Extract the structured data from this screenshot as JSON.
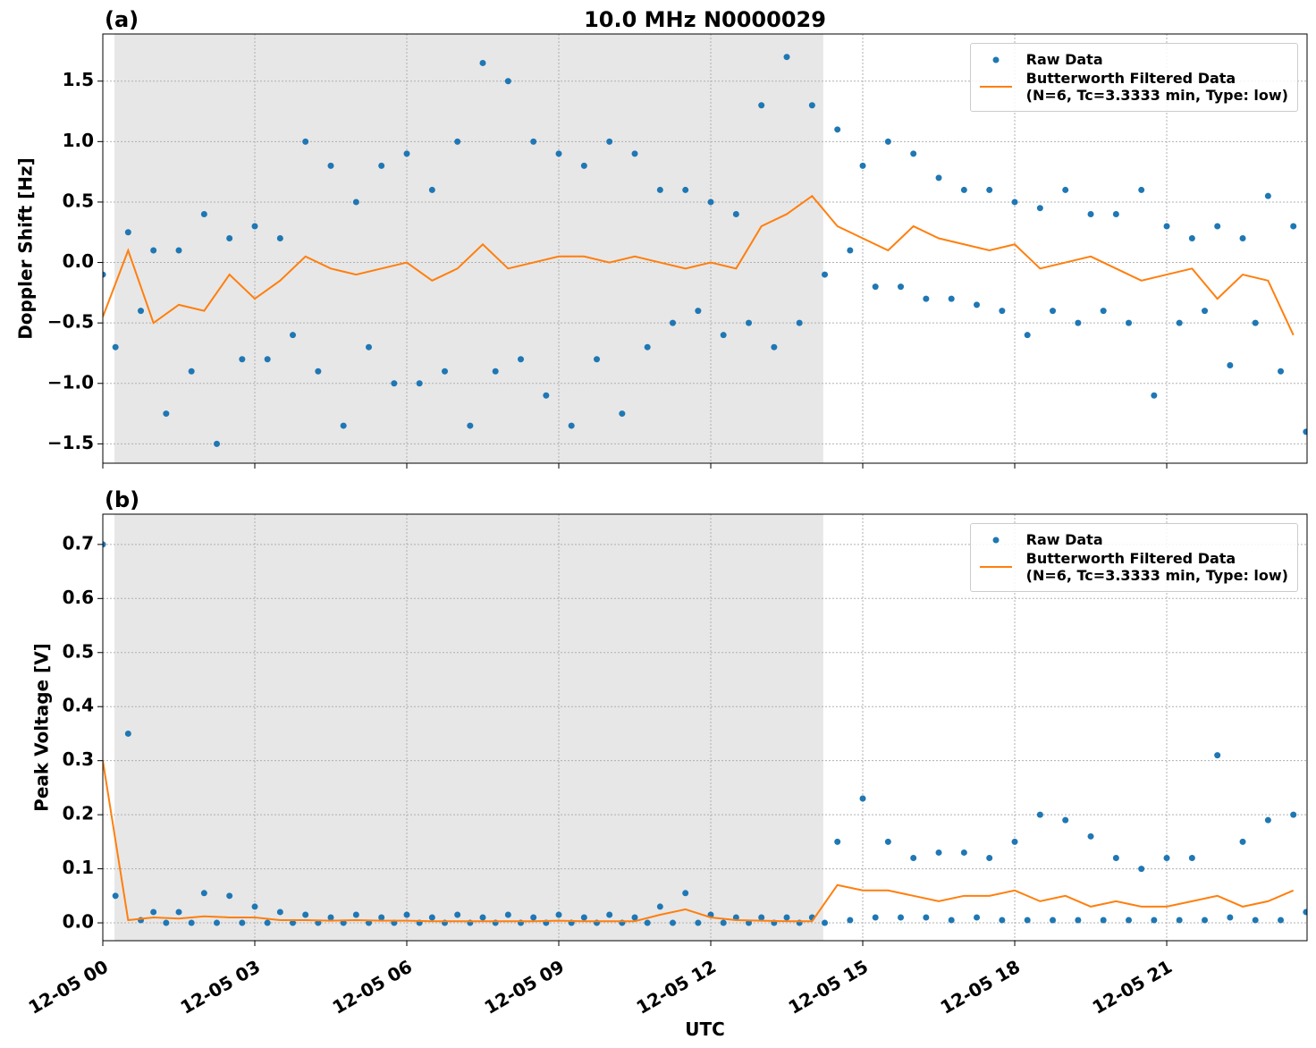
{
  "chart_data": [
    {
      "type": "line",
      "title": "10.0 MHz N0000029",
      "panel_label": "(a)",
      "ylabel": "Doppler Shift [Hz]",
      "xlim": [
        0,
        23.77
      ],
      "ylim": [
        -1.66,
        1.89
      ],
      "xticks": [
        0,
        3,
        6,
        9,
        12,
        15,
        18,
        21
      ],
      "yticks": [
        {
          "value": -1.5,
          "label": "−1.5"
        },
        {
          "value": -1.0,
          "label": "−1.0"
        },
        {
          "value": -0.5,
          "label": "−0.5"
        },
        {
          "value": 0.0,
          "label": "0.0"
        },
        0.5,
        {
          "value": 1.0,
          "label": "1.0"
        },
        1.5
      ],
      "grid": true,
      "legend": "upper right",
      "shade": [
        0.23,
        14.22
      ],
      "shade_color": "#e7e7e7",
      "series": [
        {
          "name": "Raw Data",
          "type": "scatter",
          "color": "#1f77b4",
          "x": [
            0,
            0.25,
            0.5,
            0.75,
            1,
            1.25,
            1.5,
            1.75,
            2,
            2.25,
            2.5,
            2.75,
            3,
            3.25,
            3.5,
            3.75,
            4,
            4.25,
            4.5,
            4.75,
            5,
            5.25,
            5.5,
            5.75,
            6,
            6.25,
            6.5,
            6.75,
            7,
            7.25,
            7.5,
            7.75,
            8,
            8.25,
            8.5,
            8.75,
            9,
            9.25,
            9.5,
            9.75,
            10,
            10.25,
            10.5,
            10.75,
            11,
            11.25,
            11.5,
            11.75,
            12,
            12.25,
            12.5,
            12.75,
            13,
            13.25,
            13.5,
            13.75,
            14,
            14.25,
            14.5,
            14.75,
            15,
            15.25,
            15.5,
            15.75,
            16,
            16.25,
            16.5,
            16.75,
            17,
            17.25,
            17.5,
            17.75,
            18,
            18.25,
            18.5,
            18.75,
            19,
            19.25,
            19.5,
            19.75,
            20,
            20.25,
            20.5,
            20.75,
            21,
            21.25,
            21.5,
            21.75,
            22,
            22.25,
            22.5,
            22.75,
            23,
            23.25,
            23.5,
            23.75
          ],
          "values": [
            -0.1,
            -0.7,
            0.25,
            -0.4,
            0.1,
            -1.25,
            0.1,
            -0.9,
            0.4,
            -1.5,
            0.2,
            -0.8,
            0.3,
            -0.8,
            0.2,
            -0.6,
            1.0,
            -0.9,
            0.8,
            -1.35,
            0.5,
            -0.7,
            0.8,
            -1.0,
            0.9,
            -1.0,
            0.6,
            -0.9,
            1.0,
            -1.35,
            1.65,
            -0.9,
            1.5,
            -0.8,
            1.0,
            -1.1,
            0.9,
            -1.35,
            0.8,
            -0.8,
            1.0,
            -1.25,
            0.9,
            -0.7,
            0.6,
            -0.5,
            0.6,
            -0.4,
            0.5,
            -0.6,
            0.4,
            -0.5,
            1.3,
            -0.7,
            1.7,
            -0.5,
            1.3,
            -0.1,
            1.1,
            0.1,
            0.8,
            -0.2,
            1.0,
            -0.2,
            0.9,
            -0.3,
            0.7,
            -0.3,
            0.6,
            -0.35,
            0.6,
            -0.4,
            0.5,
            -0.6,
            0.45,
            -0.4,
            0.6,
            -0.5,
            0.4,
            -0.4,
            0.4,
            -0.5,
            0.6,
            -1.1,
            0.3,
            -0.5,
            0.2,
            -0.4,
            0.3,
            -0.85,
            0.2,
            -0.5,
            0.55,
            -0.9,
            0.3,
            -1.4
          ]
        },
        {
          "name": "Butterworth Filtered Data\n(N=6, Tc=3.3333 min, Type: low)",
          "type": "line",
          "color": "#ff7f0e",
          "x": [
            0,
            0.5,
            1,
            1.5,
            2,
            2.5,
            3,
            3.5,
            4,
            4.5,
            5,
            5.5,
            6,
            6.5,
            7,
            7.5,
            8,
            8.5,
            9,
            9.5,
            10,
            10.5,
            11,
            11.5,
            12,
            12.5,
            13,
            13.5,
            14,
            14.5,
            15,
            15.5,
            16,
            16.5,
            17,
            17.5,
            18,
            18.5,
            19,
            19.5,
            20,
            20.5,
            21,
            21.5,
            22,
            22.5,
            23,
            23.5
          ],
          "values": [
            -0.45,
            0.1,
            -0.5,
            -0.35,
            -0.4,
            -0.1,
            -0.3,
            -0.15,
            0.05,
            -0.05,
            -0.1,
            -0.05,
            0.0,
            -0.15,
            -0.05,
            0.15,
            -0.05,
            0.0,
            0.05,
            0.05,
            0.0,
            0.05,
            0.0,
            -0.05,
            0.0,
            -0.05,
            0.3,
            0.4,
            0.55,
            0.3,
            0.2,
            0.1,
            0.3,
            0.2,
            0.15,
            0.1,
            0.15,
            -0.05,
            0.0,
            0.05,
            -0.05,
            -0.15,
            -0.1,
            -0.05,
            -0.3,
            -0.1,
            -0.15,
            -0.6
          ]
        }
      ]
    },
    {
      "type": "line",
      "panel_label": "(b)",
      "ylabel": "Peak Voltage [V]",
      "xlabel": "UTC",
      "xlim": [
        0,
        23.77
      ],
      "ylim": [
        -0.033,
        0.756
      ],
      "xticks": [
        {
          "value": 0,
          "label": "12-05 00"
        },
        {
          "value": 3,
          "label": "12-05 03"
        },
        {
          "value": 6,
          "label": "12-05 06"
        },
        {
          "value": 9,
          "label": "12-05 09"
        },
        {
          "value": 12,
          "label": "12-05 12"
        },
        {
          "value": 15,
          "label": "12-05 15"
        },
        {
          "value": 18,
          "label": "12-05 18"
        },
        {
          "value": 21,
          "label": "12-05 21"
        }
      ],
      "yticks": [
        {
          "value": 0.0,
          "label": "0.0"
        },
        0.1,
        0.2,
        0.3,
        0.4,
        0.5,
        0.6,
        0.7
      ],
      "grid": true,
      "legend": "upper right",
      "shade": [
        0.23,
        14.22
      ],
      "shade_color": "#e7e7e7",
      "series": [
        {
          "name": "Raw Data",
          "type": "scatter",
          "color": "#1f77b4",
          "x": [
            0,
            0.25,
            0.5,
            0.75,
            1,
            1.25,
            1.5,
            1.75,
            2,
            2.25,
            2.5,
            2.75,
            3,
            3.25,
            3.5,
            3.75,
            4,
            4.25,
            4.5,
            4.75,
            5,
            5.25,
            5.5,
            5.75,
            6,
            6.25,
            6.5,
            6.75,
            7,
            7.25,
            7.5,
            7.75,
            8,
            8.25,
            8.5,
            8.75,
            9,
            9.25,
            9.5,
            9.75,
            10,
            10.25,
            10.5,
            10.75,
            11,
            11.25,
            11.5,
            11.75,
            12,
            12.25,
            12.5,
            12.75,
            13,
            13.25,
            13.5,
            13.75,
            14,
            14.25,
            14.5,
            14.75,
            15,
            15.25,
            15.5,
            15.75,
            16,
            16.25,
            16.5,
            16.75,
            17,
            17.25,
            17.5,
            17.75,
            18,
            18.25,
            18.5,
            18.75,
            19,
            19.25,
            19.5,
            19.75,
            20,
            20.25,
            20.5,
            20.75,
            21,
            21.25,
            21.5,
            21.75,
            22,
            22.25,
            22.5,
            22.75,
            23,
            23.25,
            23.5,
            23.75
          ],
          "values": [
            0.7,
            0.05,
            0.35,
            0.005,
            0.02,
            0.0,
            0.02,
            0.0,
            0.055,
            0.0,
            0.05,
            0.0,
            0.03,
            0.0,
            0.02,
            0.0,
            0.015,
            0.0,
            0.01,
            0.0,
            0.015,
            0.0,
            0.01,
            0.0,
            0.015,
            0.0,
            0.01,
            0.0,
            0.015,
            0.0,
            0.01,
            0.0,
            0.015,
            0.0,
            0.01,
            0.0,
            0.015,
            0.0,
            0.01,
            0.0,
            0.015,
            0.0,
            0.01,
            0.0,
            0.03,
            0.0,
            0.055,
            0.0,
            0.015,
            0.0,
            0.01,
            0.0,
            0.01,
            0.0,
            0.01,
            0.0,
            0.01,
            0.0,
            0.15,
            0.005,
            0.23,
            0.01,
            0.15,
            0.01,
            0.12,
            0.01,
            0.13,
            0.005,
            0.13,
            0.01,
            0.12,
            0.005,
            0.15,
            0.005,
            0.2,
            0.005,
            0.19,
            0.005,
            0.16,
            0.005,
            0.12,
            0.005,
            0.1,
            0.005,
            0.12,
            0.005,
            0.12,
            0.005,
            0.31,
            0.01,
            0.15,
            0.005,
            0.19,
            0.005,
            0.2,
            0.02
          ]
        },
        {
          "name": "Butterworth Filtered Data\n(N=6, Tc=3.3333 min, Type: low)",
          "type": "line",
          "color": "#ff7f0e",
          "x": [
            0,
            0.5,
            1,
            1.5,
            2,
            2.5,
            3,
            3.5,
            4,
            4.5,
            5,
            5.5,
            6,
            6.5,
            7,
            7.5,
            8,
            8.5,
            9,
            9.5,
            10,
            10.5,
            11,
            11.5,
            12,
            12.5,
            13,
            13.5,
            14,
            14.5,
            15,
            15.5,
            16,
            16.5,
            17,
            17.5,
            18,
            18.5,
            19,
            19.5,
            20,
            20.5,
            21,
            21.5,
            22,
            22.5,
            23,
            23.5
          ],
          "values": [
            0.3,
            0.005,
            0.01,
            0.008,
            0.012,
            0.01,
            0.01,
            0.005,
            0.005,
            0.004,
            0.005,
            0.004,
            0.004,
            0.003,
            0.003,
            0.003,
            0.003,
            0.003,
            0.004,
            0.003,
            0.003,
            0.003,
            0.015,
            0.025,
            0.01,
            0.005,
            0.004,
            0.003,
            0.003,
            0.07,
            0.06,
            0.06,
            0.05,
            0.04,
            0.05,
            0.05,
            0.06,
            0.04,
            0.05,
            0.03,
            0.04,
            0.03,
            0.03,
            0.04,
            0.05,
            0.03,
            0.04,
            0.06
          ]
        }
      ]
    }
  ]
}
